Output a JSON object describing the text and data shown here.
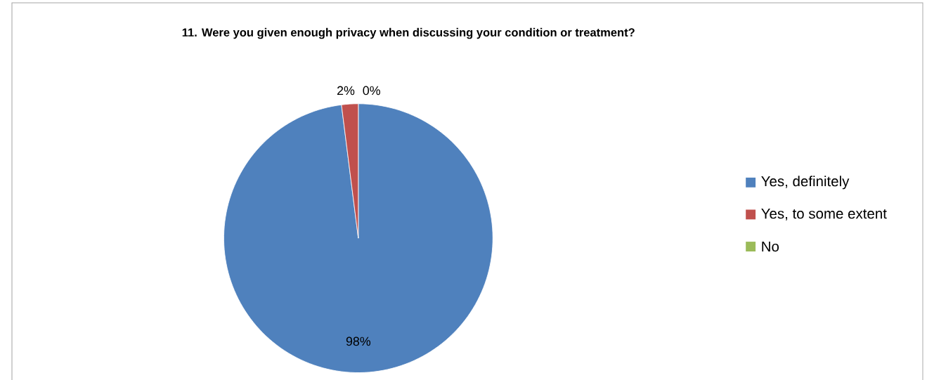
{
  "chart_data": {
    "type": "pie",
    "title": "11. Were you given enough privacy when discussing your condition or treatment?",
    "categories": [
      "Yes, definitely",
      "Yes, to some extent",
      "No"
    ],
    "values": [
      98,
      2,
      0
    ],
    "colors": [
      "#4f81bd",
      "#c0504d",
      "#9bbb59"
    ],
    "value_labels": [
      "98%",
      "2%",
      "0%"
    ],
    "legend": "right"
  }
}
